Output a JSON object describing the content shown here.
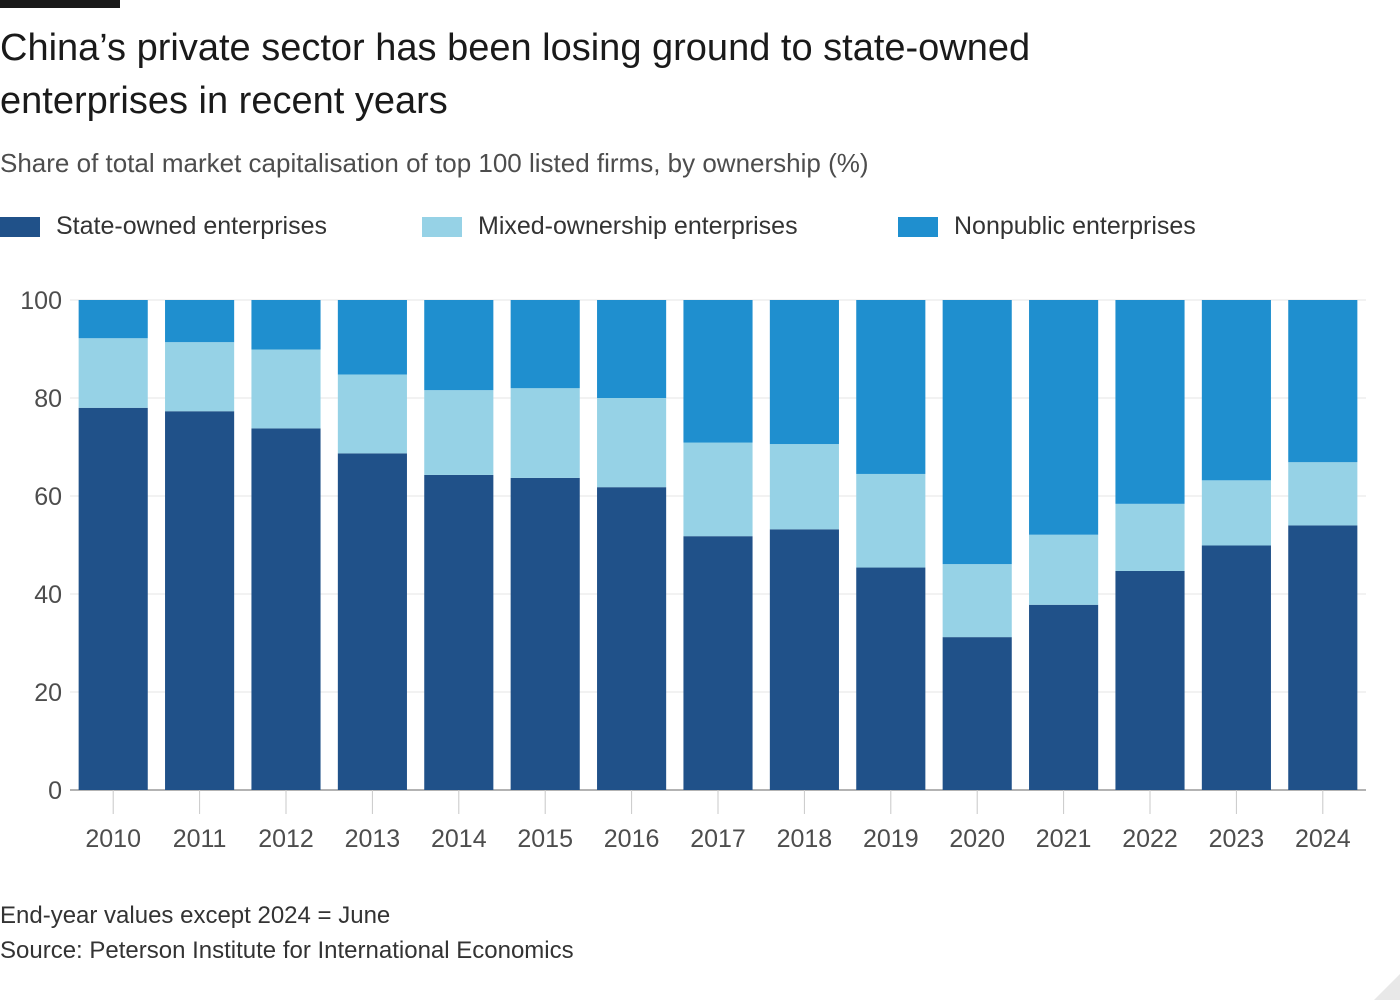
{
  "title": "China’s private sector has been losing ground to state-owned enterprises in recent years",
  "subtitle": "Share of total market capitalisation of top 100 listed firms, by ownership (%)",
  "legend": [
    {
      "label": "State-owned enterprises",
      "color": "#205189"
    },
    {
      "label": "Mixed-ownership enterprises",
      "color": "#96d2e6"
    },
    {
      "label": "Nonpublic enterprises",
      "color": "#1f8fcf"
    }
  ],
  "chart_data": {
    "type": "bar",
    "stacked": true,
    "categories": [
      "2010",
      "2011",
      "2012",
      "2013",
      "2014",
      "2015",
      "2016",
      "2017",
      "2018",
      "2019",
      "2020",
      "2021",
      "2022",
      "2023",
      "2024"
    ],
    "series": [
      {
        "name": "State-owned enterprises",
        "color": "#205189",
        "values": [
          78,
          77.3,
          73.8,
          68.7,
          64.3,
          63.7,
          61.8,
          51.8,
          53.2,
          45.4,
          31.2,
          37.8,
          44.7,
          49.9,
          54
        ]
      },
      {
        "name": "Mixed-ownership enterprises",
        "color": "#96d2e6",
        "values": [
          14.2,
          14.1,
          16.1,
          16.1,
          17.3,
          18.3,
          18.2,
          19.1,
          17.4,
          19.1,
          14.9,
          14.3,
          13.7,
          13.3,
          12.9
        ]
      },
      {
        "name": "Nonpublic enterprises",
        "color": "#1f8fcf",
        "values": [
          7.8,
          8.6,
          10.1,
          15.2,
          18.4,
          18,
          20,
          29.1,
          29.4,
          35.5,
          53.9,
          47.9,
          41.6,
          36.8,
          33.1
        ]
      }
    ],
    "ylim": [
      0,
      100
    ],
    "yticks": [
      "0",
      "20",
      "40",
      "60",
      "80",
      "100"
    ],
    "grid": true,
    "legend_position": "top-left"
  },
  "footer": {
    "note": "End-year values except 2024 = June",
    "source": "Source: Peterson Institute for International Economics"
  }
}
